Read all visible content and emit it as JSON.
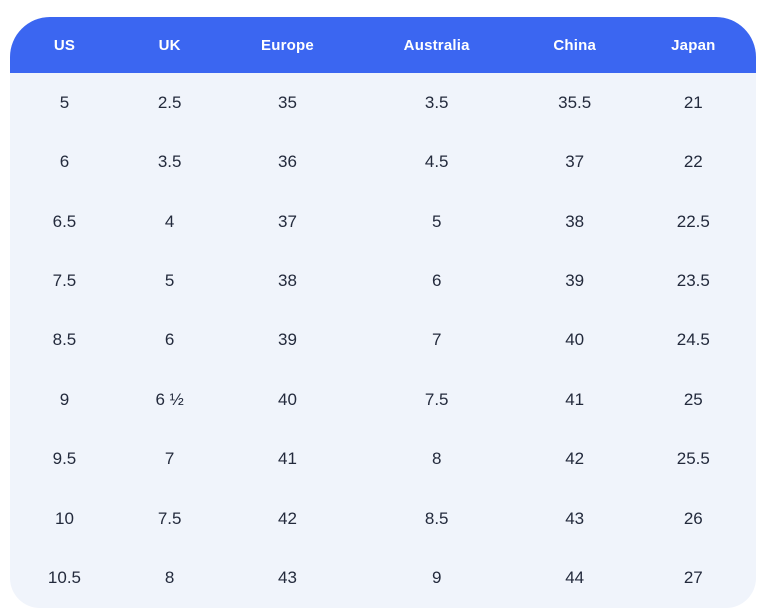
{
  "chart_data": {
    "type": "table",
    "columns": [
      "US",
      "UK",
      "Europe",
      "Australia",
      "China",
      "Japan"
    ],
    "rows": [
      [
        "5",
        "2.5",
        "35",
        "3.5",
        "35.5",
        "21"
      ],
      [
        "6",
        "3.5",
        "36",
        "4.5",
        "37",
        "22"
      ],
      [
        "6.5",
        "4",
        "37",
        "5",
        "38",
        "22.5"
      ],
      [
        "7.5",
        "5",
        "38",
        "6",
        "39",
        "23.5"
      ],
      [
        "8.5",
        "6",
        "39",
        "7",
        "40",
        "24.5"
      ],
      [
        "9",
        "6 ½",
        "40",
        "7.5",
        "41",
        "25"
      ],
      [
        "9.5",
        "7",
        "41",
        "8",
        "42",
        "25.5"
      ],
      [
        "10",
        "7.5",
        "42",
        "8.5",
        "43",
        "26"
      ],
      [
        "10.5",
        "8",
        "43",
        "9",
        "44",
        "27"
      ]
    ]
  },
  "colors": {
    "header_bg": "#3b66f1",
    "header_text": "#ffffff",
    "body_bg": "#f0f4fb",
    "body_text": "#232a3c",
    "page_bg": "#ffffff"
  }
}
